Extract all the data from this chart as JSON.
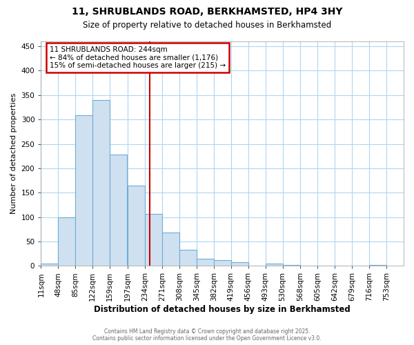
{
  "title1": "11, SHRUBLANDS ROAD, BERKHAMSTED, HP4 3HY",
  "title2": "Size of property relative to detached houses in Berkhamsted",
  "xlabel": "Distribution of detached houses by size in Berkhamsted",
  "ylabel": "Number of detached properties",
  "bin_edges": [
    11,
    48,
    85,
    122,
    159,
    197,
    234,
    271,
    308,
    345,
    382,
    419,
    456,
    493,
    530,
    568,
    605,
    642,
    679,
    716,
    753
  ],
  "bar_heights": [
    5,
    100,
    308,
    340,
    228,
    165,
    107,
    68,
    33,
    14,
    12,
    7,
    0,
    4,
    2,
    0,
    0,
    0,
    0,
    2
  ],
  "bar_color": "#cfe0f0",
  "bar_edge_color": "#6baed6",
  "background_color": "#ffffff",
  "plot_bg_color": "#ffffff",
  "grid_color": "#aed6f1",
  "property_size": 244,
  "red_line_color": "#cc0000",
  "annotation_line1": "11 SHRUBLANDS ROAD: 244sqm",
  "annotation_line2": "← 84% of detached houses are smaller (1,176)",
  "annotation_line3": "15% of semi-detached houses are larger (215) →",
  "ylim": [
    0,
    460
  ],
  "yticks": [
    0,
    50,
    100,
    150,
    200,
    250,
    300,
    350,
    400,
    450
  ],
  "tick_labels": [
    "11sqm",
    "48sqm",
    "85sqm",
    "122sqm",
    "159sqm",
    "197sqm",
    "234sqm",
    "271sqm",
    "308sqm",
    "345sqm",
    "382sqm",
    "419sqm",
    "456sqm",
    "493sqm",
    "530sqm",
    "568sqm",
    "605sqm",
    "642sqm",
    "679sqm",
    "716sqm",
    "753sqm"
  ],
  "footer1": "Contains HM Land Registry data © Crown copyright and database right 2025.",
  "footer2": "Contains public sector information licensed under the Open Government Licence v3.0."
}
